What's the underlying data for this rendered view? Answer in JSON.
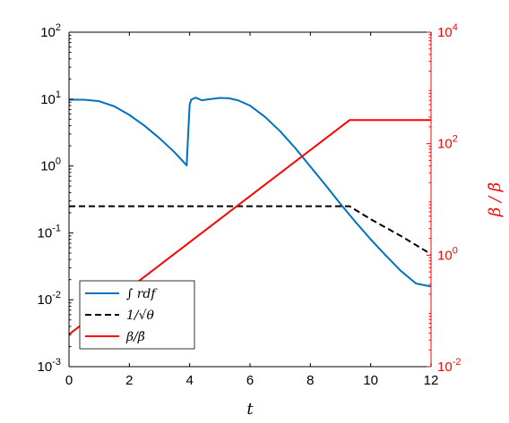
{
  "chart_data": {
    "type": "line",
    "xlabel": "t",
    "ylabel_right": "β / β̄",
    "xlim": [
      0,
      12
    ],
    "x_ticks": [
      "0",
      "2",
      "4",
      "6",
      "8",
      "10",
      "12"
    ],
    "left_axis": {
      "scale": "log",
      "ylim": [
        0.001,
        100
      ],
      "tick_values": [
        0.001,
        0.01,
        0.1,
        1,
        10,
        100
      ],
      "tick_labels": [
        {
          "base": "10",
          "exp": "-3"
        },
        {
          "base": "10",
          "exp": "-2"
        },
        {
          "base": "10",
          "exp": "-1"
        },
        {
          "base": "10",
          "exp": "0"
        },
        {
          "base": "10",
          "exp": "1"
        },
        {
          "base": "10",
          "exp": "2"
        }
      ],
      "color": "#000000"
    },
    "right_axis": {
      "scale": "log",
      "ylim": [
        0.01,
        10000
      ],
      "tick_values": [
        0.01,
        1,
        100,
        10000
      ],
      "tick_labels": [
        {
          "base": "10",
          "exp": "-2"
        },
        {
          "base": "10",
          "exp": "0"
        },
        {
          "base": "10",
          "exp": "2"
        },
        {
          "base": "10",
          "exp": "4"
        }
      ],
      "color": "#ff0000"
    },
    "legend_position": "bottom-left",
    "series": [
      {
        "name": "∫ rdf",
        "axis": "left",
        "color": "#0072bd",
        "style": "solid",
        "points": [
          [
            0,
            9.8
          ],
          [
            0.5,
            9.8
          ],
          [
            1,
            9.3
          ],
          [
            1.5,
            7.8
          ],
          [
            2,
            5.8
          ],
          [
            2.5,
            4.0
          ],
          [
            3,
            2.6
          ],
          [
            3.5,
            1.6
          ],
          [
            3.9,
            1.02
          ],
          [
            3.95,
            3.0
          ],
          [
            4.0,
            8.3
          ],
          [
            4.05,
            9.8
          ],
          [
            4.2,
            10.5
          ],
          [
            4.4,
            9.6
          ],
          [
            4.7,
            10.0
          ],
          [
            5.0,
            10.4
          ],
          [
            5.3,
            10.3
          ],
          [
            5.6,
            9.6
          ],
          [
            6,
            8.0
          ],
          [
            6.5,
            5.4
          ],
          [
            7,
            3.3
          ],
          [
            7.5,
            1.85
          ],
          [
            8,
            0.98
          ],
          [
            8.5,
            0.52
          ],
          [
            9,
            0.27
          ],
          [
            9.5,
            0.145
          ],
          [
            10,
            0.08
          ],
          [
            10.5,
            0.046
          ],
          [
            11,
            0.027
          ],
          [
            11.5,
            0.0175
          ],
          [
            12,
            0.0158
          ]
        ]
      },
      {
        "name": "1/√θ",
        "axis": "left",
        "color": "#000000",
        "style": "dashed",
        "points": [
          [
            0,
            0.25
          ],
          [
            9.3,
            0.25
          ],
          [
            10,
            0.16
          ],
          [
            11,
            0.09
          ],
          [
            12,
            0.048
          ]
        ]
      },
      {
        "name": "β/β̄",
        "axis": "right",
        "color": "#ff0000",
        "style": "solid",
        "points": [
          [
            0,
            0.038
          ],
          [
            9.3,
            265
          ],
          [
            12,
            265
          ]
        ]
      }
    ]
  }
}
